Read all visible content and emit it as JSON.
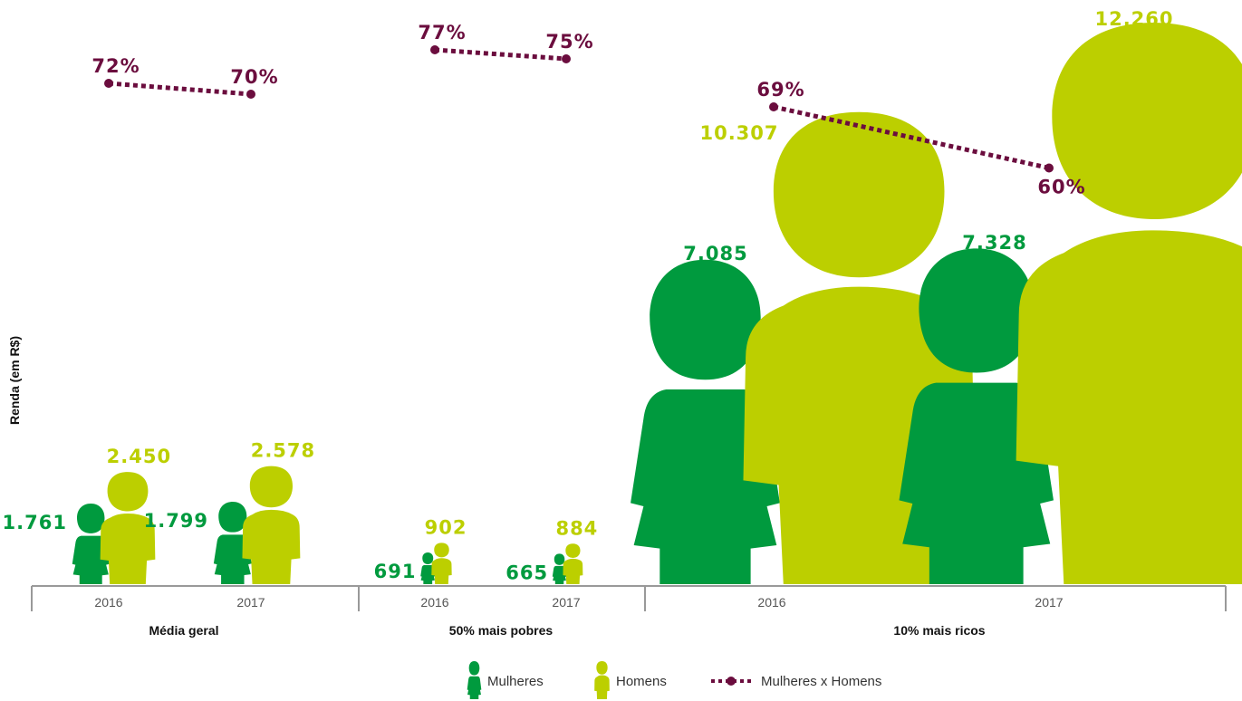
{
  "colors": {
    "women": "#009a3e",
    "men": "#bccf00",
    "ratio": "#6b0d3e",
    "axis": "#999999"
  },
  "chart_data": {
    "type": "pictograph",
    "ylabel": "Renda (em R$)",
    "groups": [
      {
        "name": "Média geral",
        "years": [
          {
            "year": "2016",
            "women": 1761,
            "men": 2450,
            "women_label": "1.761",
            "men_label": "2.450",
            "ratio": 72,
            "ratio_label": "72%"
          },
          {
            "year": "2017",
            "women": 1799,
            "men": 2578,
            "women_label": "1.799",
            "men_label": "2.578",
            "ratio": 70,
            "ratio_label": "70%"
          }
        ]
      },
      {
        "name": "50% mais pobres",
        "years": [
          {
            "year": "2016",
            "women": 691,
            "men": 902,
            "women_label": "691",
            "men_label": "902",
            "ratio": 77,
            "ratio_label": "77%"
          },
          {
            "year": "2017",
            "women": 665,
            "men": 884,
            "women_label": "665",
            "men_label": "884",
            "ratio": 75,
            "ratio_label": "75%"
          }
        ]
      },
      {
        "name": "10% mais ricos",
        "years": [
          {
            "year": "2016",
            "women": 7085,
            "men": 10307,
            "women_label": "7.085",
            "men_label": "10.307",
            "ratio": 69,
            "ratio_label": "69%"
          },
          {
            "year": "2017",
            "women": 7328,
            "men": 12260,
            "women_label": "7.328",
            "men_label": "12.260",
            "ratio": 60,
            "ratio_label": "60%"
          }
        ]
      }
    ],
    "legend": [
      {
        "key": "women",
        "label": "Mulheres"
      },
      {
        "key": "men",
        "label": "Homens"
      },
      {
        "key": "ratio",
        "label": "Mulheres x Homens"
      }
    ]
  }
}
